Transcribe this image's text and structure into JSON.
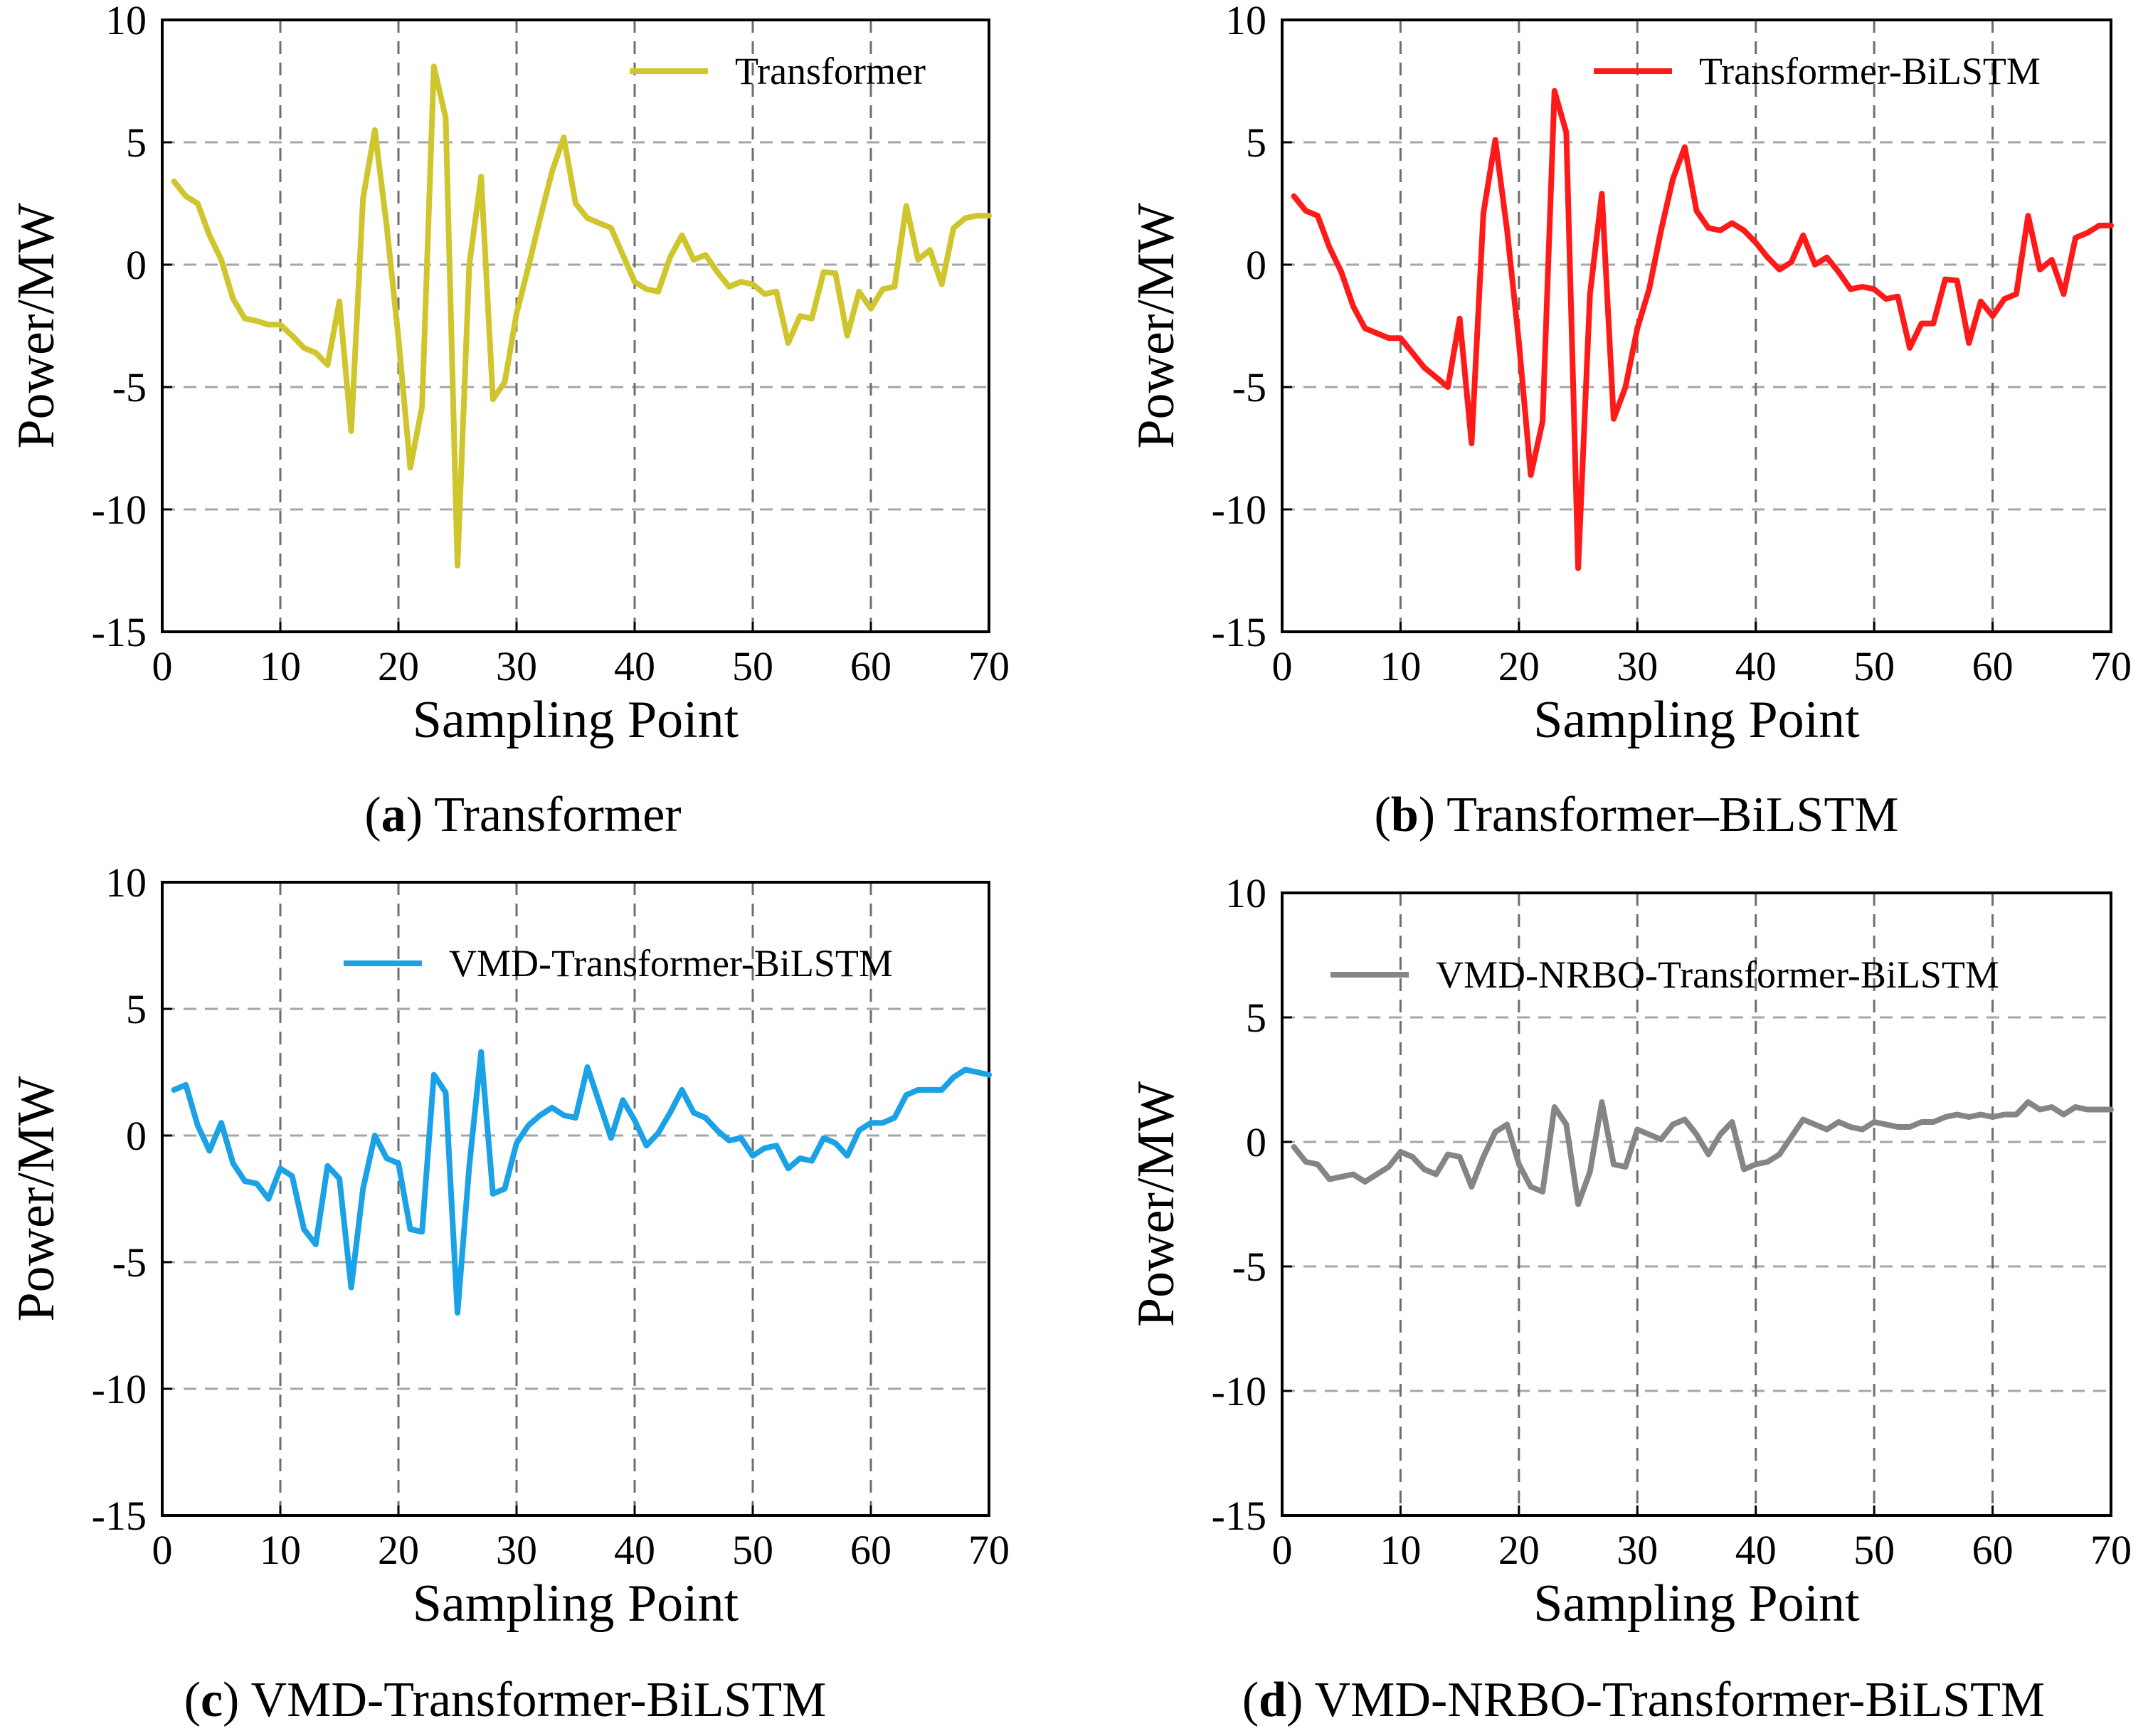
{
  "figure": {
    "panels": [
      {
        "caption_letter": "a",
        "caption_text": "Transformer",
        "legend_label": "Transformer",
        "color": "#CFC52D"
      },
      {
        "caption_letter": "b",
        "caption_text": "Transformer–BiLSTM",
        "legend_label": "Transformer-BiLSTM",
        "color": "#FF1A1A"
      },
      {
        "caption_letter": "c",
        "caption_text": "VMD-Transformer-BiLSTM",
        "legend_label": "VMD-Transformer-BiLSTM",
        "color": "#1BA1E6"
      },
      {
        "caption_letter": "d",
        "caption_text": "VMD-NRBO-Transformer-BiLSTM",
        "legend_label": "VMD-NRBO-Transformer-BiLSTM",
        "color": "#858585"
      }
    ]
  },
  "chart_data": [
    {
      "type": "line",
      "xlabel": "Sampling Point",
      "ylabel": "Power/MW",
      "xlim": [
        0,
        70
      ],
      "ylim": [
        -15,
        10
      ],
      "xticks": [
        0,
        10,
        20,
        30,
        40,
        50,
        60,
        70
      ],
      "yticks": [
        10,
        5,
        0,
        -5,
        -10,
        -15
      ],
      "grid": "dashed",
      "legend_position": "top-right",
      "series": [
        {
          "name": "Transformer",
          "x": [
            1,
            2,
            3,
            4,
            5,
            6,
            7,
            8,
            9,
            10,
            11,
            12,
            13,
            14,
            15,
            16,
            17,
            18,
            19,
            20,
            21,
            22,
            23,
            24,
            25,
            26,
            27,
            28,
            29,
            30,
            31,
            32,
            33,
            34,
            35,
            36,
            37,
            38,
            39,
            40,
            41,
            42,
            43,
            44,
            45,
            46,
            47,
            48,
            49,
            50,
            51,
            52,
            53,
            54,
            55,
            56,
            57,
            58,
            59,
            60,
            61,
            62,
            63,
            64,
            65,
            66,
            67,
            68,
            69,
            70
          ],
          "y": [
            3.4,
            2.8,
            2.5,
            1.2,
            0.2,
            -1.4,
            -2.2,
            -2.3,
            -2.45,
            -2.45,
            -2.9,
            -3.4,
            -3.6,
            -4.1,
            -1.5,
            -6.8,
            2.7,
            5.5,
            1.6,
            -3.0,
            -8.3,
            -5.8,
            8.1,
            6.0,
            -12.3,
            0.0,
            3.6,
            -5.5,
            -4.8,
            -2.0,
            -0.1,
            1.9,
            3.8,
            5.2,
            2.5,
            1.9,
            1.7,
            1.5,
            0.4,
            -0.7,
            -1.0,
            -1.1,
            0.3,
            1.2,
            0.2,
            0.4,
            -0.3,
            -0.9,
            -0.7,
            -0.8,
            -1.2,
            -1.1,
            -3.2,
            -2.1,
            -2.2,
            -0.3,
            -0.35,
            -2.9,
            -1.1,
            -1.8,
            -1.0,
            -0.9,
            2.4,
            0.2,
            0.6,
            -0.8,
            1.5,
            1.9,
            2.0,
            2.0
          ]
        }
      ]
    },
    {
      "type": "line",
      "xlabel": "Sampling Point",
      "ylabel": "Power/MW",
      "xlim": [
        0,
        70
      ],
      "ylim": [
        -15,
        10
      ],
      "xticks": [
        0,
        10,
        20,
        30,
        40,
        50,
        60,
        70
      ],
      "yticks": [
        10,
        5,
        0,
        -5,
        -10,
        -15
      ],
      "grid": "dashed",
      "legend_position": "top-right",
      "series": [
        {
          "name": "Transformer-BiLSTM",
          "x": [
            1,
            2,
            3,
            4,
            5,
            6,
            7,
            8,
            9,
            10,
            11,
            12,
            13,
            14,
            15,
            16,
            17,
            18,
            19,
            20,
            21,
            22,
            23,
            24,
            25,
            26,
            27,
            28,
            29,
            30,
            31,
            32,
            33,
            34,
            35,
            36,
            37,
            38,
            39,
            40,
            41,
            42,
            43,
            44,
            45,
            46,
            47,
            48,
            49,
            50,
            51,
            52,
            53,
            54,
            55,
            56,
            57,
            58,
            59,
            60,
            61,
            62,
            63,
            64,
            65,
            66,
            67,
            68,
            69,
            70
          ],
          "y": [
            2.8,
            2.2,
            2.0,
            0.7,
            -0.3,
            -1.7,
            -2.6,
            -2.8,
            -3.0,
            -3.0,
            -3.6,
            -4.2,
            -4.6,
            -5.0,
            -2.2,
            -7.3,
            2.1,
            5.1,
            1.4,
            -3.2,
            -8.6,
            -6.4,
            7.1,
            5.4,
            -12.4,
            -1.2,
            2.9,
            -6.3,
            -5.0,
            -2.6,
            -1.0,
            1.4,
            3.5,
            4.8,
            2.2,
            1.5,
            1.4,
            1.7,
            1.4,
            0.9,
            0.3,
            -0.2,
            0.1,
            1.2,
            0.0,
            0.3,
            -0.3,
            -1.0,
            -0.9,
            -1.0,
            -1.4,
            -1.3,
            -3.4,
            -2.4,
            -2.4,
            -0.6,
            -0.65,
            -3.2,
            -1.5,
            -2.1,
            -1.4,
            -1.2,
            2.0,
            -0.2,
            0.2,
            -1.2,
            1.1,
            1.3,
            1.6,
            1.6
          ]
        }
      ]
    },
    {
      "type": "line",
      "xlabel": "Sampling Point",
      "ylabel": "Power/MW",
      "xlim": [
        0,
        70
      ],
      "ylim": [
        -15,
        10
      ],
      "xticks": [
        0,
        10,
        20,
        30,
        40,
        50,
        60,
        70
      ],
      "yticks": [
        10,
        5,
        0,
        -5,
        -10,
        -15
      ],
      "grid": "dashed",
      "legend_position": "top-right",
      "series": [
        {
          "name": "VMD-Transformer-BiLSTM",
          "x": [
            1,
            2,
            3,
            4,
            5,
            6,
            7,
            8,
            9,
            10,
            11,
            12,
            13,
            14,
            15,
            16,
            17,
            18,
            19,
            20,
            21,
            22,
            23,
            24,
            25,
            26,
            27,
            28,
            29,
            30,
            31,
            32,
            33,
            34,
            35,
            36,
            37,
            38,
            39,
            40,
            41,
            42,
            43,
            44,
            45,
            46,
            47,
            48,
            49,
            50,
            51,
            52,
            53,
            54,
            55,
            56,
            57,
            58,
            59,
            60,
            61,
            62,
            63,
            64,
            65,
            66,
            67,
            68,
            69,
            70
          ],
          "y": [
            1.8,
            2.0,
            0.4,
            -0.6,
            0.5,
            -1.1,
            -1.8,
            -1.9,
            -2.5,
            -1.3,
            -1.6,
            -3.7,
            -4.3,
            -1.2,
            -1.7,
            -6.0,
            -2.1,
            0.0,
            -0.9,
            -1.1,
            -3.7,
            -3.8,
            2.4,
            1.7,
            -7.0,
            -1.2,
            3.3,
            -2.3,
            -2.1,
            -0.3,
            0.4,
            0.8,
            1.1,
            0.8,
            0.7,
            2.7,
            1.3,
            -0.1,
            1.4,
            0.6,
            -0.4,
            0.1,
            0.9,
            1.8,
            0.9,
            0.7,
            0.2,
            -0.2,
            -0.1,
            -0.8,
            -0.5,
            -0.4,
            -1.3,
            -0.9,
            -1.0,
            -0.1,
            -0.3,
            -0.8,
            0.2,
            0.5,
            0.5,
            0.7,
            1.6,
            1.8,
            1.8,
            1.8,
            2.3,
            2.6,
            2.5,
            2.4
          ]
        }
      ]
    },
    {
      "type": "line",
      "xlabel": "Sampling Point",
      "ylabel": "Power/MW",
      "xlim": [
        0,
        70
      ],
      "ylim": [
        -15,
        10
      ],
      "xticks": [
        0,
        10,
        20,
        30,
        40,
        50,
        60,
        70
      ],
      "yticks": [
        10,
        5,
        0,
        -5,
        -10,
        -15
      ],
      "grid": "dashed",
      "legend_position": "top-right",
      "series": [
        {
          "name": "VMD-NRBO-Transformer-BiLSTM",
          "x": [
            1,
            2,
            3,
            4,
            5,
            6,
            7,
            8,
            9,
            10,
            11,
            12,
            13,
            14,
            15,
            16,
            17,
            18,
            19,
            20,
            21,
            22,
            23,
            24,
            25,
            26,
            27,
            28,
            29,
            30,
            31,
            32,
            33,
            34,
            35,
            36,
            37,
            38,
            39,
            40,
            41,
            42,
            43,
            44,
            45,
            46,
            47,
            48,
            49,
            50,
            51,
            52,
            53,
            54,
            55,
            56,
            57,
            58,
            59,
            60,
            61,
            62,
            63,
            64,
            65,
            66,
            67,
            68,
            69,
            70
          ],
          "y": [
            -0.2,
            -0.8,
            -0.9,
            -1.5,
            -1.4,
            -1.3,
            -1.6,
            -1.3,
            -1.0,
            -0.4,
            -0.6,
            -1.1,
            -1.3,
            -0.5,
            -0.6,
            -1.8,
            -0.6,
            0.4,
            0.7,
            -0.9,
            -1.8,
            -2.0,
            1.4,
            0.7,
            -2.5,
            -1.2,
            1.6,
            -0.9,
            -1.0,
            0.5,
            0.3,
            0.1,
            0.7,
            0.9,
            0.3,
            -0.5,
            0.3,
            0.8,
            -1.1,
            -0.9,
            -0.8,
            -0.5,
            0.2,
            0.9,
            0.7,
            0.5,
            0.8,
            0.6,
            0.5,
            0.8,
            0.7,
            0.6,
            0.6,
            0.8,
            0.8,
            1.0,
            1.1,
            1.0,
            1.1,
            1.0,
            1.1,
            1.1,
            1.6,
            1.3,
            1.4,
            1.1,
            1.4,
            1.3,
            1.3,
            1.3
          ]
        }
      ]
    }
  ]
}
